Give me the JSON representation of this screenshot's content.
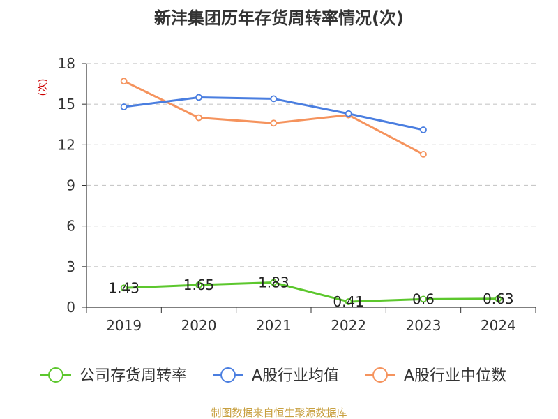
{
  "chart_data": {
    "type": "line",
    "title": "新沣集团历年存货周转率情况(次)",
    "ylabel": "(次)",
    "categories": [
      "2019",
      "2020",
      "2021",
      "2022",
      "2023",
      "2024"
    ],
    "ylim": [
      0,
      18
    ],
    "yticks": [
      0,
      3,
      6,
      9,
      12,
      15,
      18
    ],
    "grid": true,
    "legend_position": "bottom",
    "series": [
      {
        "name": "公司存货周转率",
        "color": "#5cc72d",
        "values": [
          1.43,
          1.65,
          1.83,
          0.41,
          0.6,
          0.63
        ],
        "labels": [
          "1.43",
          "1.65",
          "1.83",
          "0.41",
          "0.6",
          "0.63"
        ]
      },
      {
        "name": "A股行业均值",
        "color": "#4a7ee0",
        "values": [
          14.8,
          15.5,
          15.4,
          14.3,
          13.1,
          null
        ]
      },
      {
        "name": "A股行业中位数",
        "color": "#f5935d",
        "values": [
          16.7,
          14.0,
          13.6,
          14.2,
          11.3,
          null
        ]
      }
    ],
    "source": "制图数据来自恒生聚源数据库",
    "colors": {
      "axis": "#333333",
      "grid": "#c8c8c8",
      "unit": "#cc0000",
      "source": "#c8a040"
    }
  }
}
